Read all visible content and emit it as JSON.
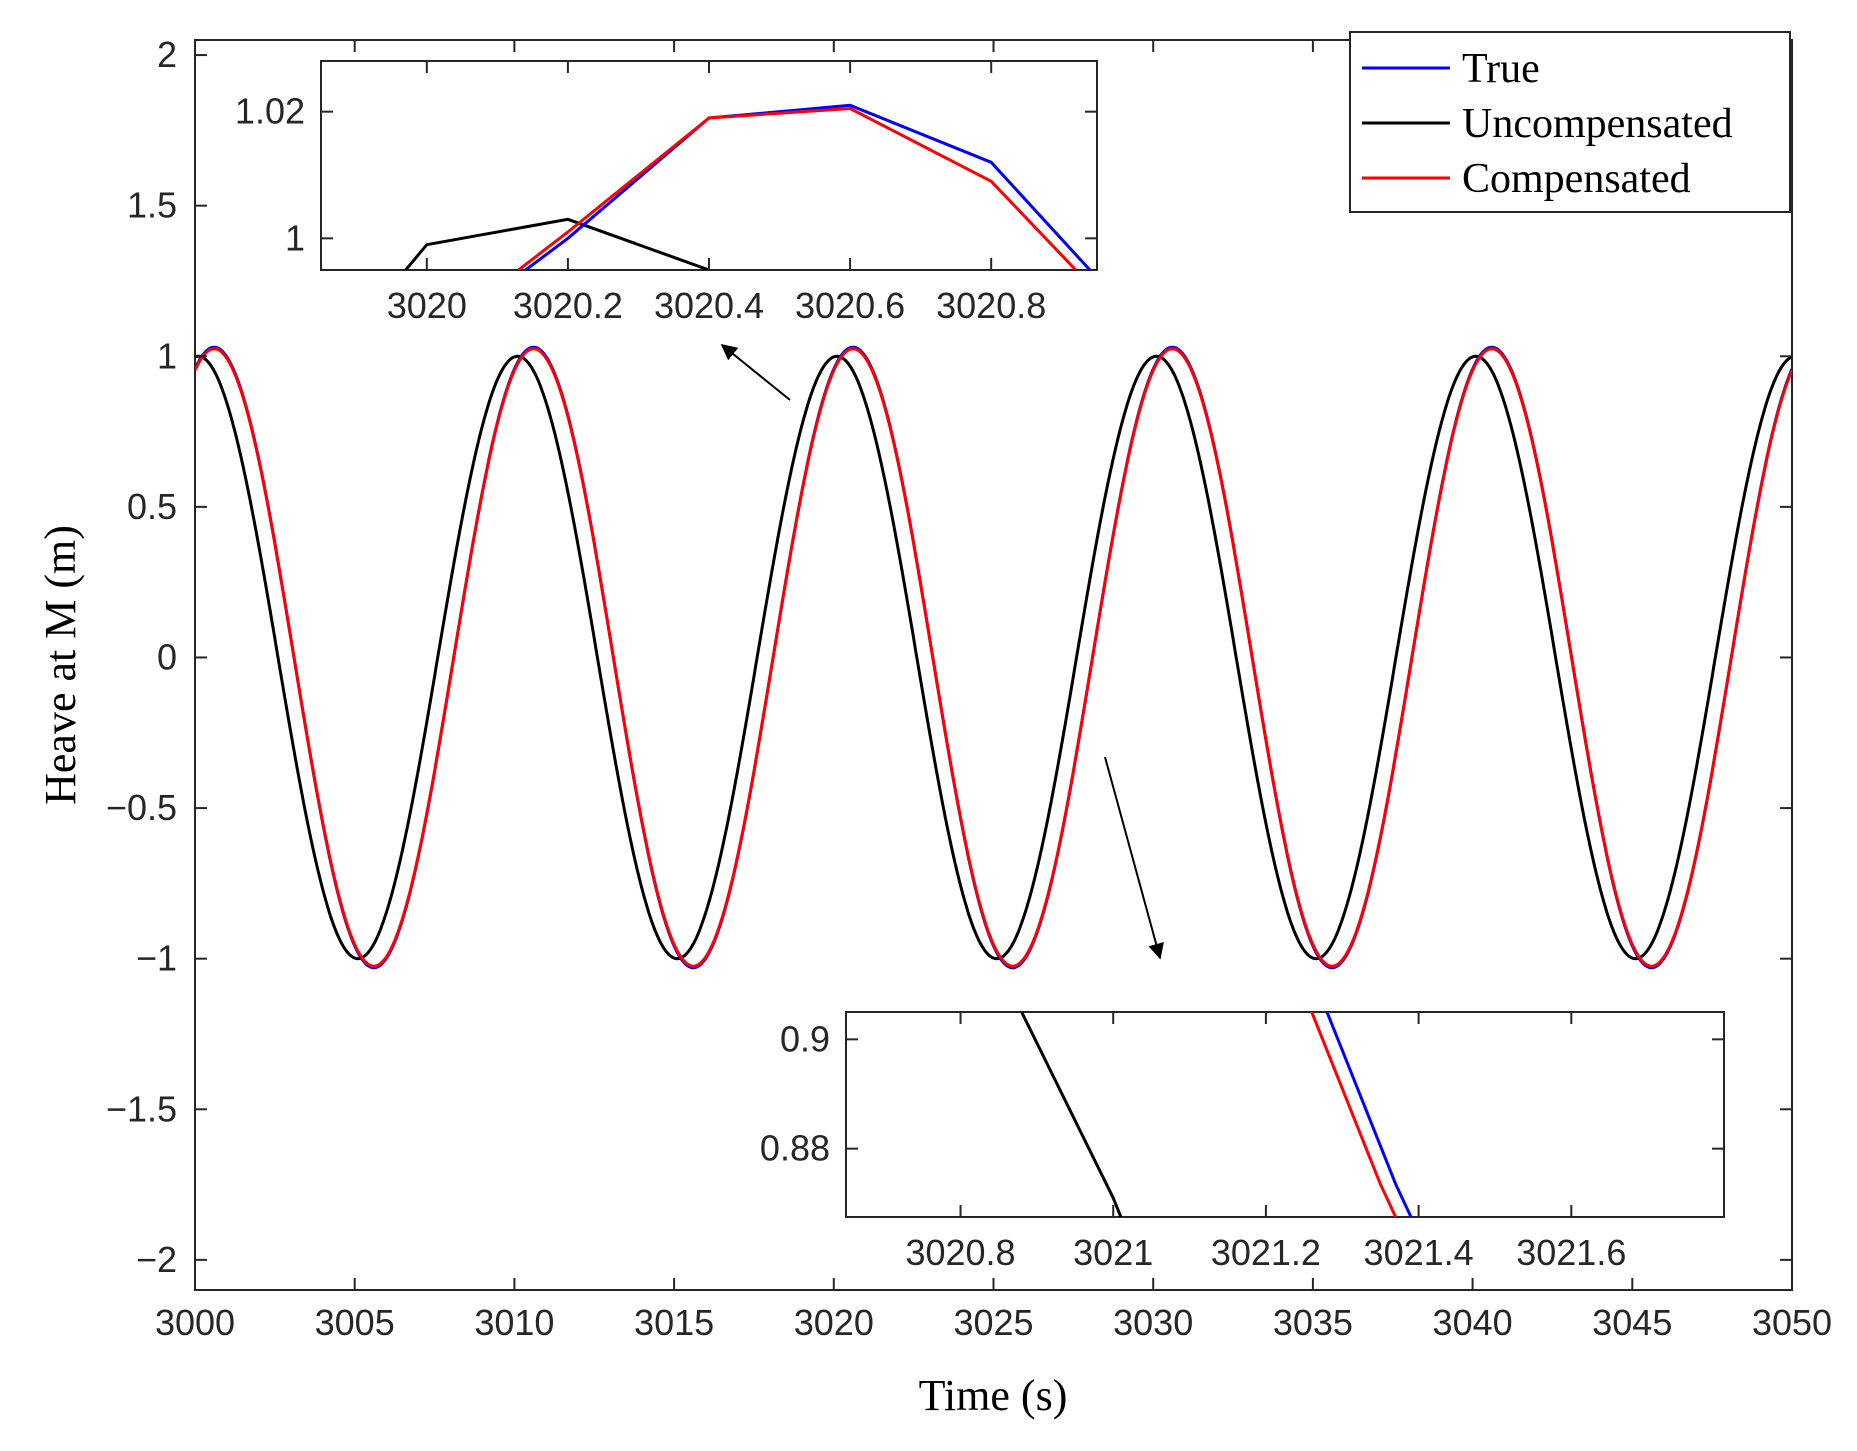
{
  "chart_data": {
    "main": {
      "type": "line",
      "xlabel": "Time (s)",
      "ylabel": "Heave at M (m)",
      "xlim": [
        3000,
        3050
      ],
      "ylim": [
        -2.1,
        2.05
      ],
      "xticks": [
        3000,
        3005,
        3010,
        3015,
        3020,
        3025,
        3030,
        3035,
        3040,
        3045,
        3050
      ],
      "xtick_labels": [
        "3000",
        "3005",
        "3010",
        "3015",
        "3020",
        "3025",
        "3030",
        "3035",
        "3040",
        "3045",
        "3050"
      ],
      "yticks": [
        2,
        1.5,
        1,
        0.5,
        0,
        -0.5,
        -1,
        -1.5,
        -2
      ],
      "ytick_labels": [
        "2",
        "1.5",
        "1",
        "0.5",
        "0",
        "−0.5",
        "−1",
        "−1.5",
        "−2"
      ],
      "legend_position": "top-right",
      "series": [
        {
          "name": "True",
          "color": "#0000ff",
          "amplitude": 1.03,
          "period_s": 10.0,
          "peak_time_s": 3000.6
        },
        {
          "name": "Uncompensated",
          "color": "#000000",
          "amplitude": 1.0,
          "period_s": 10.0,
          "peak_time_s": 3000.1
        },
        {
          "name": "Compensated",
          "color": "#ff0000",
          "amplitude": 1.025,
          "period_s": 10.0,
          "peak_time_s": 3000.6
        }
      ]
    },
    "inset_top": {
      "type": "line",
      "xlim": [
        3019.85,
        3020.95
      ],
      "ylim": [
        0.995,
        1.028
      ],
      "xticks": [
        3020,
        3020.2,
        3020.4,
        3020.6,
        3020.8
      ],
      "xtick_labels": [
        "3020",
        "3020.2",
        "3020.4",
        "3020.6",
        "3020.8"
      ],
      "yticks": [
        1.02,
        1
      ],
      "ytick_labels": [
        "1.02",
        "1"
      ],
      "series": [
        {
          "name": "True",
          "x": [
            3020.14,
            3020.2,
            3020.4,
            3020.6,
            3020.8,
            3020.94
          ],
          "y": [
            0.995,
            1.0,
            1.019,
            1.021,
            1.012,
            0.995
          ]
        },
        {
          "name": "Uncompensated",
          "x": [
            3019.97,
            3020.0,
            3020.2,
            3020.4
          ],
          "y": [
            0.995,
            0.999,
            1.003,
            0.995
          ]
        },
        {
          "name": "Compensated",
          "x": [
            3020.13,
            3020.2,
            3020.4,
            3020.6,
            3020.8,
            3020.92
          ],
          "y": [
            0.995,
            1.001,
            1.019,
            1.0205,
            1.009,
            0.995
          ]
        }
      ]
    },
    "inset_bottom": {
      "type": "line",
      "xlim": [
        3020.65,
        3021.8
      ],
      "ylim": [
        0.8675,
        0.905
      ],
      "xticks": [
        3020.8,
        3021,
        3021.2,
        3021.4,
        3021.6
      ],
      "xtick_labels": [
        "3020.8",
        "3021",
        "3021.2",
        "3021.4",
        "3021.6"
      ],
      "yticks": [
        0.9,
        0.88
      ],
      "ytick_labels": [
        "0.9",
        "0.88"
      ],
      "series": [
        {
          "name": "True",
          "x": [
            3021.28,
            3021.37,
            3021.39
          ],
          "y": [
            0.905,
            0.8735,
            0.8675
          ]
        },
        {
          "name": "Uncompensated",
          "x": [
            3020.88,
            3021.0,
            3021.01
          ],
          "y": [
            0.905,
            0.871,
            0.8675
          ]
        },
        {
          "name": "Compensated",
          "x": [
            3021.26,
            3021.35,
            3021.37
          ],
          "y": [
            0.905,
            0.8735,
            0.8675
          ]
        }
      ]
    }
  }
}
